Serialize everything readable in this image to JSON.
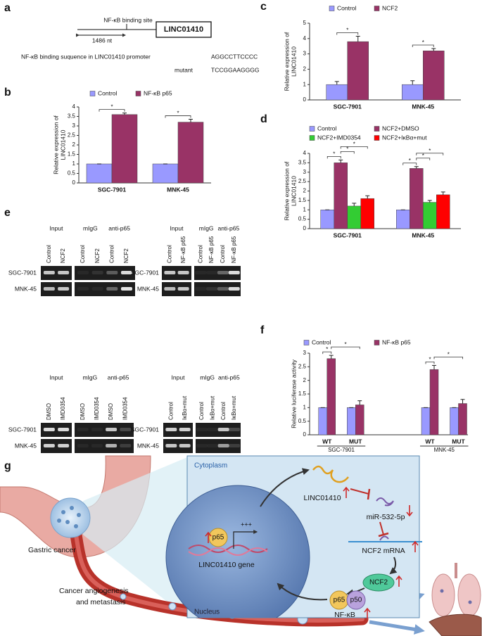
{
  "panel_a": {
    "label": "a",
    "site": "NF-κB binding site",
    "distance": "1486 nt",
    "gene": "LINC01410",
    "sequence_label": "NF-κB binding suquence in LINC01410 promoter",
    "sequence": "AGGCCTTCCCC",
    "mutant_label": "mutant",
    "mutant": "TCCGGAAGGGG"
  },
  "chart_data": [
    {
      "label": "b",
      "type": "bar",
      "categories": [
        "SGC-7901",
        "MNK-45"
      ],
      "series": [
        {
          "name": "Control",
          "color": "#9999ff",
          "values": [
            1,
            1
          ],
          "errors": [
            0,
            0
          ]
        },
        {
          "name": "NF-κB p65",
          "color": "#993366",
          "values": [
            3.6,
            3.2
          ],
          "errors": [
            0.08,
            0.15
          ]
        }
      ],
      "ylabel": [
        "Relative expression of",
        "LINC01410"
      ],
      "ylim": [
        0,
        4
      ],
      "yticks": [
        0,
        0.5,
        1,
        1.5,
        2,
        2.5,
        3,
        3.5,
        4
      ],
      "annotations": [
        "*",
        "*"
      ]
    },
    {
      "label": "c",
      "type": "bar",
      "categories": [
        "SGC-7901",
        "MNK-45"
      ],
      "series": [
        {
          "name": "Control",
          "color": "#9999ff",
          "values": [
            1,
            1
          ],
          "errors": [
            0.2,
            0.25
          ]
        },
        {
          "name": "NCF2",
          "color": "#993366",
          "values": [
            3.8,
            3.2
          ],
          "errors": [
            0.35,
            0.15
          ]
        }
      ],
      "ylabel": [
        "Relative expression of",
        "LINC01410"
      ],
      "ylim": [
        0,
        5
      ],
      "yticks": [
        0,
        1,
        2,
        3,
        4,
        5
      ],
      "annotations": [
        "*",
        "*"
      ]
    },
    {
      "label": "d",
      "type": "bar",
      "categories": [
        "SGC-7901",
        "MNK-45"
      ],
      "series": [
        {
          "name": "Control",
          "color": "#9999ff",
          "values": [
            1,
            1
          ],
          "errors": [
            0,
            0
          ]
        },
        {
          "name": "NCF2+DMSO",
          "color": "#993366",
          "values": [
            3.5,
            3.2
          ],
          "errors": [
            0.15,
            0.1
          ]
        },
        {
          "name": "NCF2+IMD0354",
          "color": "#33cc33",
          "values": [
            1.2,
            1.4
          ],
          "errors": [
            0.15,
            0.1
          ]
        },
        {
          "name": "NCF2+IκBα+mut",
          "color": "#ff0000",
          "values": [
            1.6,
            1.8
          ],
          "errors": [
            0.15,
            0.15
          ]
        }
      ],
      "ylabel": [
        "Relative expression of",
        "LINC01410"
      ],
      "ylim": [
        0,
        4
      ],
      "yticks": [
        0,
        0.5,
        1,
        1.5,
        2,
        2.5,
        3,
        3.5,
        4
      ],
      "annotations": [
        "*",
        "*",
        "*",
        "*",
        "*",
        "*"
      ]
    },
    {
      "label": "f",
      "type": "bar",
      "categories": [
        "WT",
        "MUT",
        "WT",
        "MUT"
      ],
      "groups": [
        "SGC-7901",
        "MNK-45"
      ],
      "series": [
        {
          "name": "Control",
          "color": "#9999ff",
          "values": [
            1,
            1,
            1,
            1
          ],
          "errors": [
            0,
            0,
            0,
            0
          ]
        },
        {
          "name": "NF-κB p65",
          "color": "#993366",
          "values": [
            2.8,
            1.1,
            2.4,
            1.15
          ],
          "errors": [
            0.12,
            0.15,
            0.15,
            0.15
          ]
        }
      ],
      "ylabel": [
        "Relative luciferase activity"
      ],
      "ylim": [
        0,
        3
      ],
      "yticks": [
        0,
        0.5,
        1,
        1.5,
        2,
        2.5,
        3
      ],
      "annotations": [
        "*",
        "*",
        "*",
        "*"
      ]
    }
  ],
  "panel_e": {
    "label": "e",
    "blocks": [
      {
        "headers": [
          "Input",
          "mIgG",
          "anti-p65"
        ],
        "lanes": [
          "Control",
          "NCF2",
          "Control",
          "NCF2",
          "Control",
          "NCF2"
        ],
        "rows": [
          "SGC-7901",
          "MNK-45"
        ]
      },
      {
        "headers": [
          "Input",
          "mIgG",
          "anti-p65"
        ],
        "lanes": [
          "Control",
          "NF-κB p65",
          "Control",
          "NF-κB p65",
          "Control",
          "NF-κB p65"
        ],
        "rows": [
          "SGC-7901",
          "MNK-45"
        ]
      },
      {
        "headers": [
          "Input",
          "mIgG",
          "anti-p65"
        ],
        "lanes": [
          "DMSO",
          "IMD0354",
          "DMSO",
          "IMD0354",
          "DMSO",
          "IMD0354"
        ],
        "rows": [
          "SGC-7901",
          "MNK-45"
        ]
      },
      {
        "headers": [
          "Input",
          "mIgG",
          "anti-p65"
        ],
        "lanes": [
          "Control",
          "IκBα+mut",
          "Control",
          "IκBα+mut",
          "Control",
          "IκBα+mut"
        ],
        "rows": [
          "SGC-7901",
          "MNK-45"
        ]
      }
    ]
  },
  "panel_g": {
    "label": "g",
    "cytoplasm": "Cytoplasm",
    "nucleus": "Nucleus",
    "rna": "LINC01410",
    "mirna": "miR-532-5p",
    "mrna": "NCF2 mRNA",
    "protein": "NCF2",
    "p65": "p65",
    "p50": "p50",
    "complex": "NF-κB",
    "gene": "LINC01410 gene",
    "gene_p65": "p65",
    "activation": "+++",
    "tumor": "Gastric cancer",
    "outcome": [
      "Cancer angiogenesis",
      "and metastasis"
    ]
  }
}
